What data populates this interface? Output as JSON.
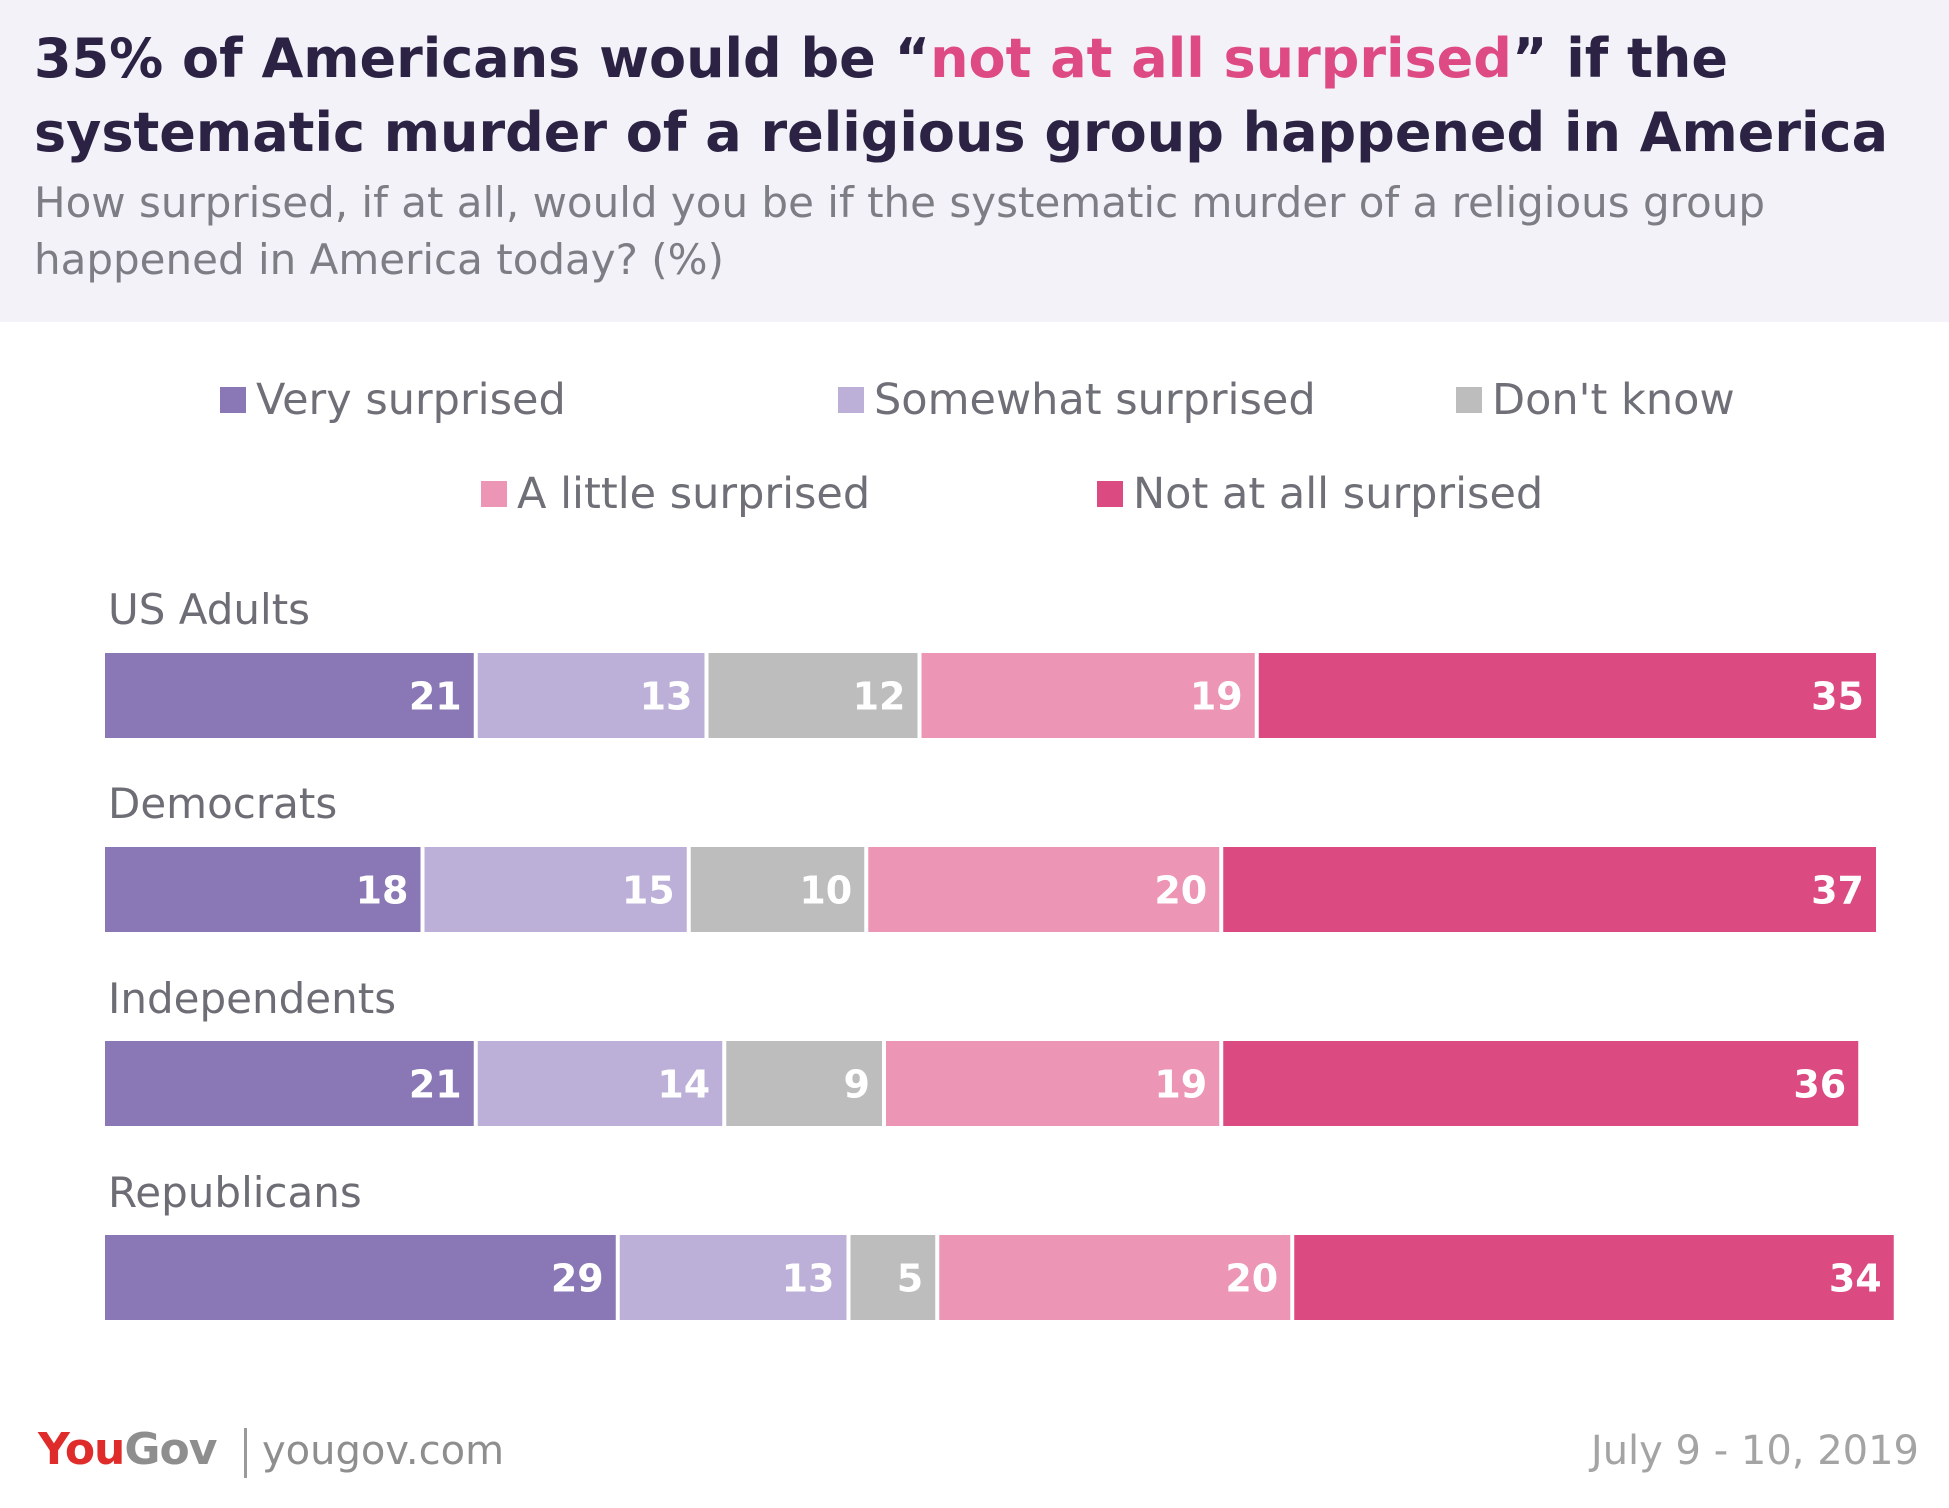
{
  "header": {
    "title_part1": "35% of Americans would be “",
    "title_highlight": "not at all surprised",
    "title_part2": "” if the systematic murder of a religious group happened in America",
    "subtitle": "How surprised, if at all, would you be if the systematic murder of a religious group happened in America today? (%)"
  },
  "colors": {
    "very": "#8a77b5",
    "somewhat": "#bdb0d8",
    "dont_know": "#bdbdbd",
    "little": "#ec95b4",
    "not_at_all": "#dc4a82",
    "title_highlight": "#de4a83"
  },
  "chart_data": {
    "type": "bar",
    "orientation": "horizontal",
    "stacked": true,
    "title": "35% of Americans would be “not at all surprised” if the systematic murder of a religious group happened in America",
    "subtitle": "How surprised, if at all, would you be if the systematic murder of a religious group happened in America today? (%)",
    "unit": "%",
    "categories": [
      "US Adults",
      "Democrats",
      "Independents",
      "Republicans"
    ],
    "series": [
      {
        "name": "Very surprised",
        "color": "#8a77b5",
        "values": [
          21,
          18,
          21,
          29
        ]
      },
      {
        "name": "Somewhat surprised",
        "color": "#bdb0d8",
        "values": [
          13,
          15,
          14,
          13
        ]
      },
      {
        "name": "Don't know",
        "color": "#bdbdbd",
        "values": [
          12,
          10,
          9,
          5
        ]
      },
      {
        "name": "A little surprised",
        "color": "#ec95b4",
        "values": [
          19,
          20,
          19,
          20
        ]
      },
      {
        "name": "Not at all surprised",
        "color": "#dc4a82",
        "values": [
          35,
          37,
          36,
          34
        ]
      }
    ],
    "legend_position": "top"
  },
  "footer": {
    "logo_you": "You",
    "logo_gov": "Gov",
    "site": "yougov.com",
    "date": "July 9 - 10, 2019"
  }
}
